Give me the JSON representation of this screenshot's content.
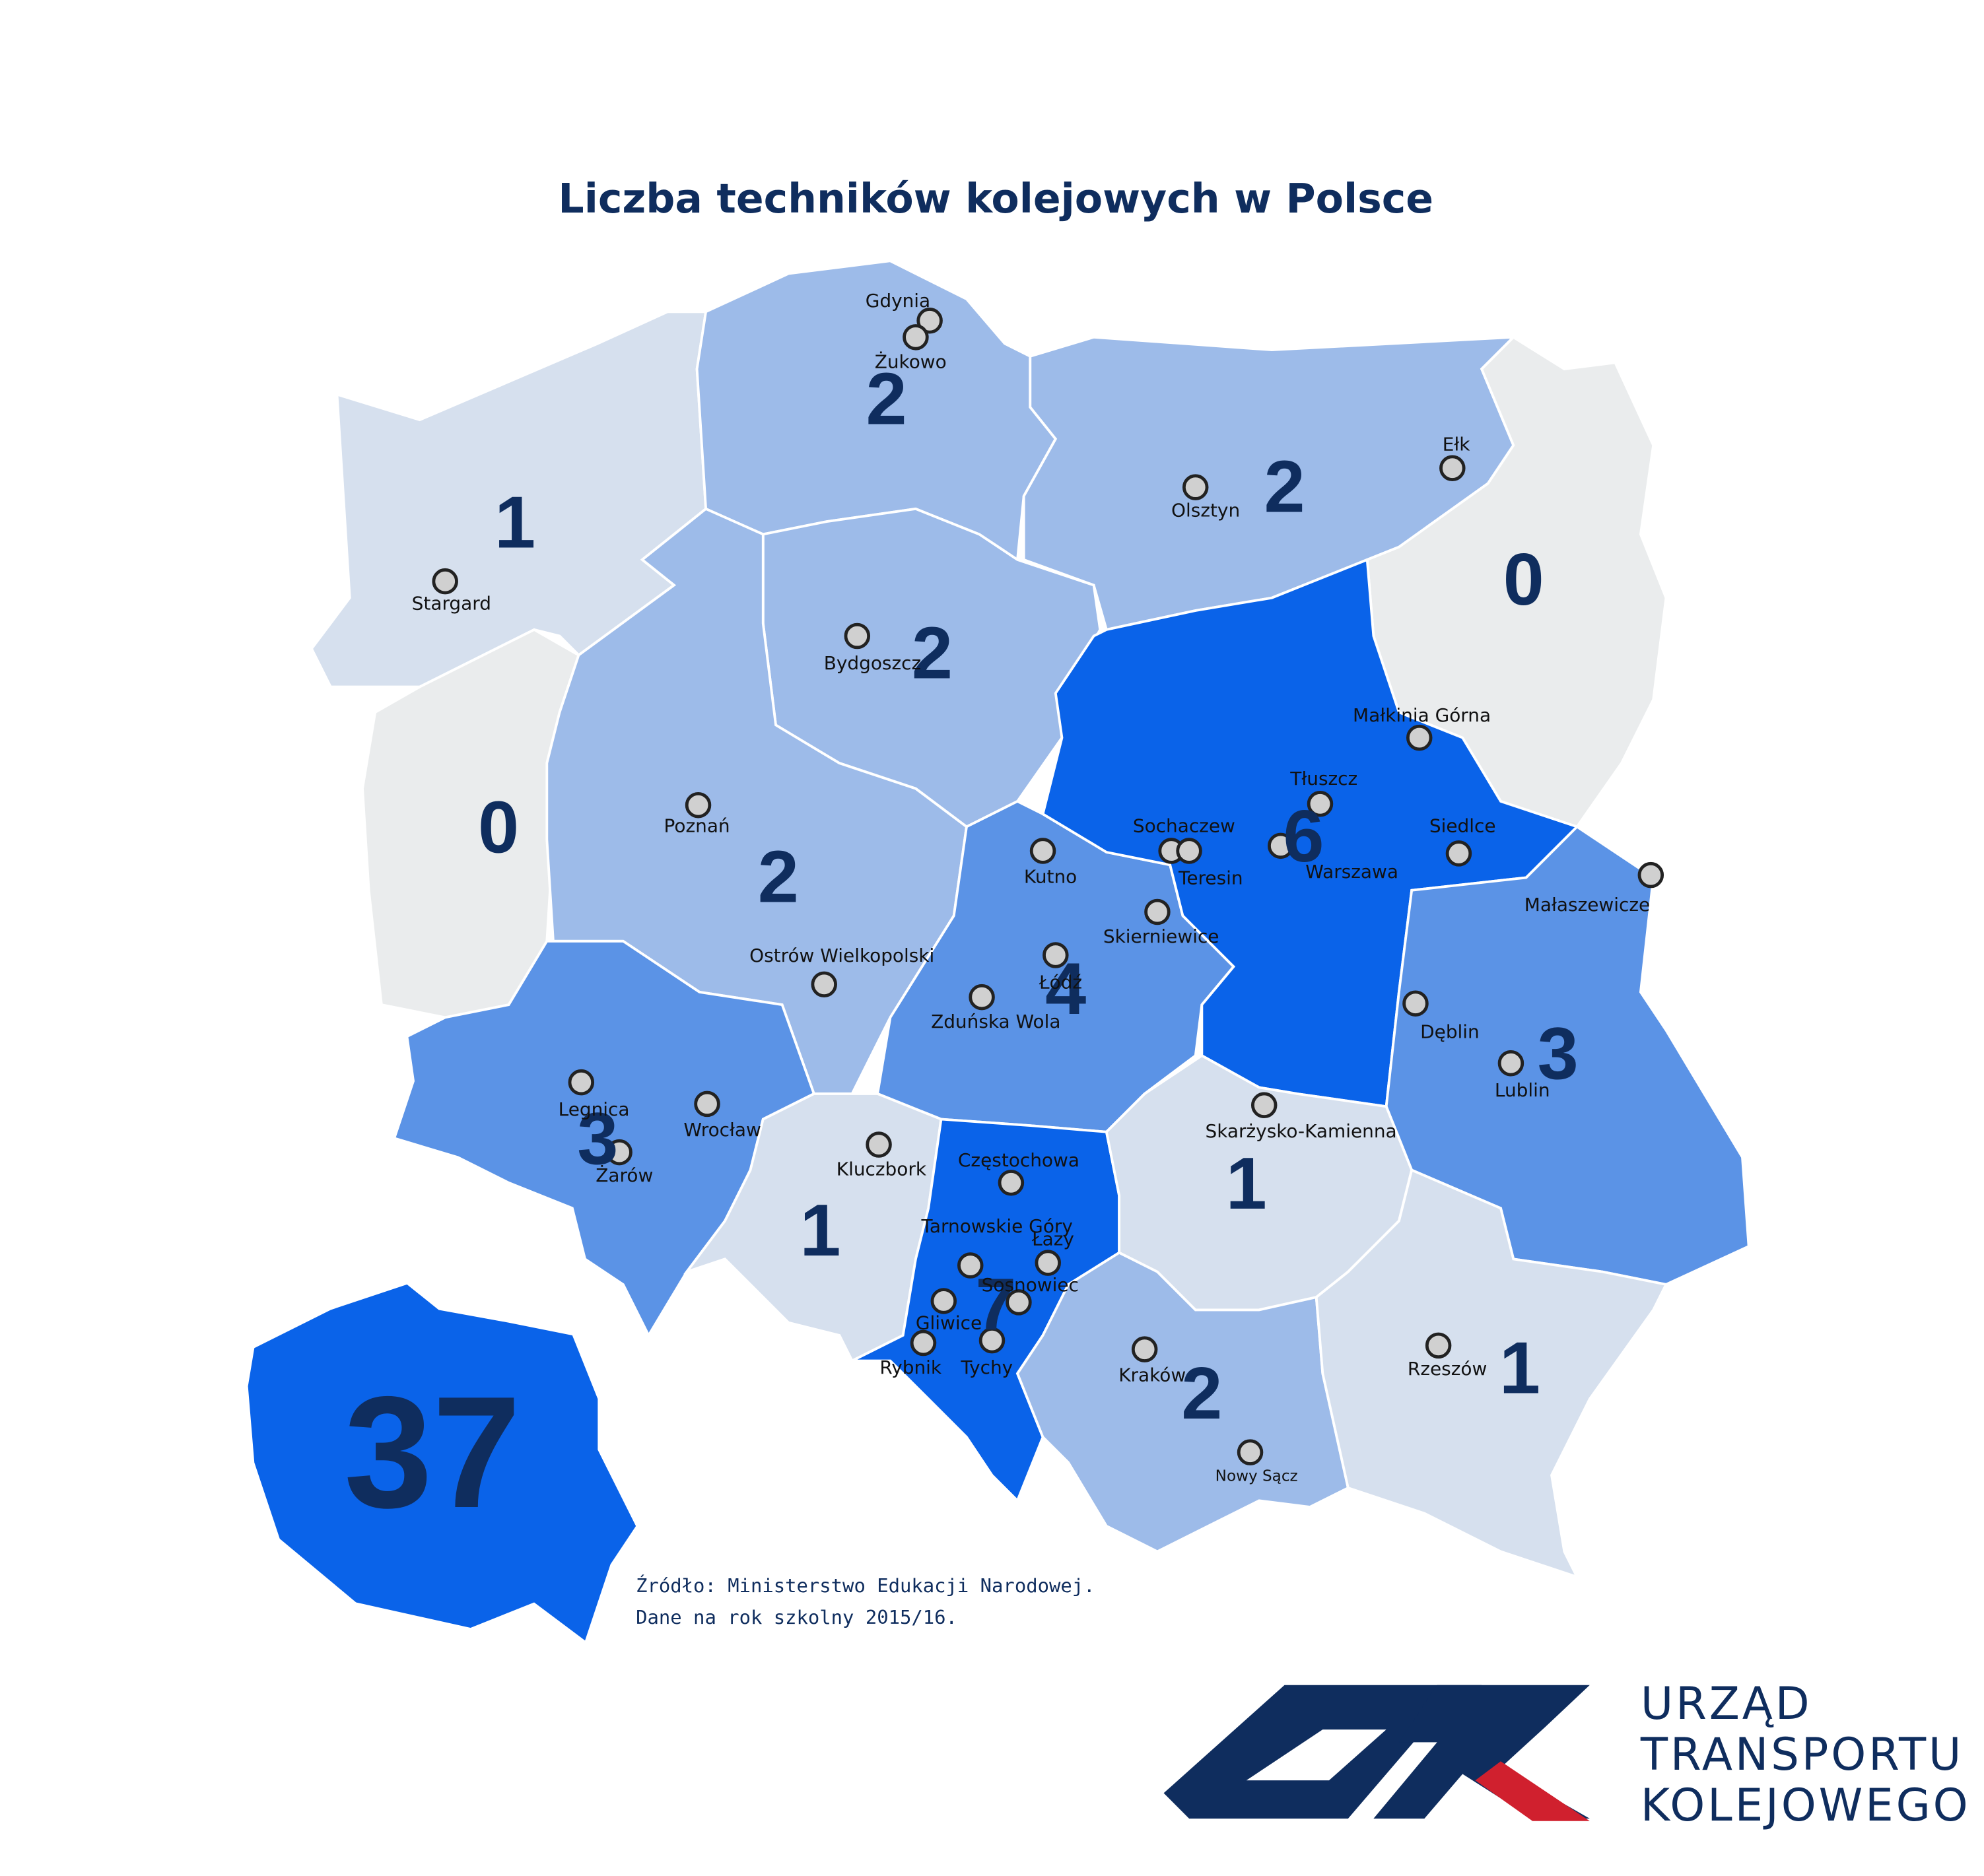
{
  "title": "Liczba techników kolejowych w Polsce",
  "regions": [
    {
      "value": 1,
      "color": "#d6e0ee"
    },
    {
      "value": 2,
      "color": "#9dbbe9"
    },
    {
      "value": 2,
      "color": "#9dbbe9"
    },
    {
      "value": 0,
      "color": "#eaeced"
    },
    {
      "value": 2,
      "color": "#9dbbe9"
    },
    {
      "value": 0,
      "color": "#eaeced"
    },
    {
      "value": 2,
      "color": "#9dbbe9"
    },
    {
      "value": 4,
      "color": "#5b93e6"
    },
    {
      "value": 6,
      "color": "#0a63e9"
    },
    {
      "value": 3,
      "color": "#5b93e6"
    },
    {
      "value": 3,
      "color": "#5b93e6"
    },
    {
      "value": 1,
      "color": "#d6e0ee"
    },
    {
      "value": 7,
      "color": "#0a63e9"
    },
    {
      "value": 1,
      "color": "#d6e0ee"
    },
    {
      "value": 2,
      "color": "#9dbbe9"
    },
    {
      "value": 1,
      "color": "#d6e0ee"
    }
  ],
  "total": {
    "value": 37,
    "color": "#0a63e9"
  },
  "cities": [
    "Gdynia",
    "Żukowo",
    "Stargard",
    "Olsztyn",
    "Ełk",
    "Bydgoszcz",
    "Małkinia Górna",
    "Tłuszcz",
    "Sochaczew",
    "Teresin",
    "Warszawa",
    "Siedlce",
    "Poznań",
    "Kutno",
    "Skierniewice",
    "Małaszewicze",
    "Łódź",
    "Ostrów Wielkopolski",
    "Zduńska Wola",
    "Dęblin",
    "Lublin",
    "Skarżysko-Kamienna",
    "Legnica",
    "Wrocław",
    "Żarów",
    "Kluczbork",
    "Częstochowa",
    "Tarnowskie Góry",
    "Łazy",
    "Sosnowiec",
    "Gliwice",
    "Rybnik",
    "Tychy",
    "Kraków",
    "Nowy Sącz",
    "Rzeszów"
  ],
  "source": [
    "Źródło: Ministerstwo Edukacji Narodowej.",
    "Dane na rok szkolny 2015/16."
  ],
  "logo": [
    "URZĄD",
    "TRANSPORTU",
    "KOLEJOWEGO"
  ]
}
